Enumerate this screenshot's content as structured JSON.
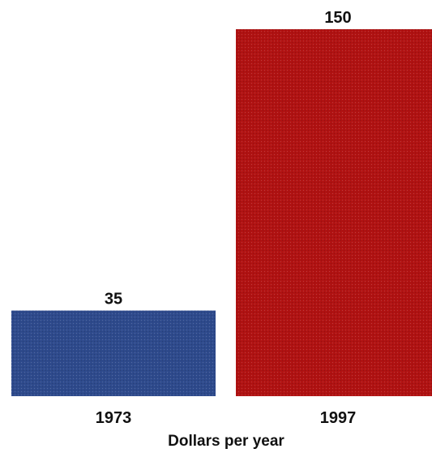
{
  "chart_data": {
    "type": "bar",
    "categories": [
      "1973",
      "1997"
    ],
    "values": [
      35,
      150
    ],
    "colors": [
      "#2e4a8c",
      "#b01212"
    ],
    "xlabel": "Dollars per year",
    "ylim": [
      0,
      150
    ],
    "grid": false,
    "legend": "none"
  }
}
